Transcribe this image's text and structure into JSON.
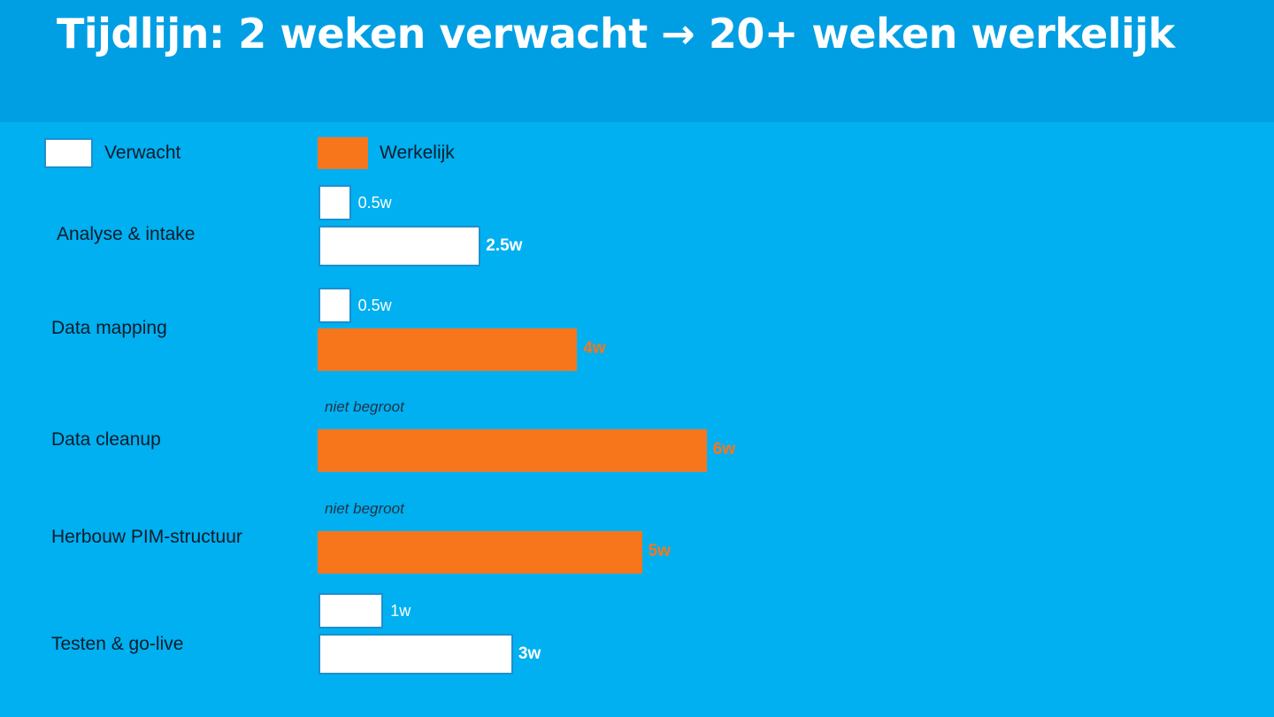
{
  "title": "Tijdlijn: 2 weken verwacht → 20+ weken werkelijk",
  "legend": {
    "expected_label": "Verwacht",
    "actual_label": "Werkelijk"
  },
  "colors": {
    "expected": "#ffffff",
    "actual": "#f8761b",
    "background": "#00b0f0",
    "header": "#009fe3"
  },
  "chart_data": {
    "type": "bar",
    "orientation": "horizontal",
    "categories": [
      "Analyse & intake",
      "Data mapping",
      "Data cleanup",
      "Herbouw PIM-structuur",
      "Testen & go-live"
    ],
    "series": [
      {
        "name": "Verwacht",
        "values": [
          0.5,
          0.5,
          null,
          null,
          1
        ],
        "labels": [
          "0.5w",
          "0.5w",
          "niet begroot",
          "niet begroot",
          "1w"
        ]
      },
      {
        "name": "Werkelijk",
        "values": [
          2.5,
          4,
          6,
          5,
          3
        ],
        "labels": [
          "2.5w",
          "4w",
          "6w",
          "5w",
          "3w"
        ],
        "colors": [
          "#ffffff",
          "#f8761b",
          "#f8761b",
          "#f8761b",
          "#ffffff"
        ]
      }
    ],
    "unit": "w",
    "xlim": [
      0,
      6
    ],
    "grid": false,
    "legend_position": "top-left"
  }
}
